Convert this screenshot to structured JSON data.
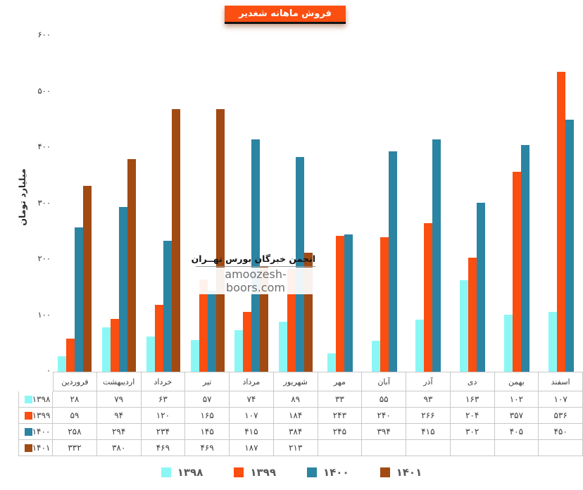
{
  "title": "فروش ماهانه شغدیر",
  "y_axis": {
    "title": "میلیارد تومان",
    "tick_values": [
      600,
      500,
      400,
      300,
      200,
      100,
      0
    ]
  },
  "watermark": {
    "line1": "انجمن خبرگان بورس تهــران",
    "line2": "amoozesh-boors.com"
  },
  "colors": {
    "accent_orange": "#FB4E11",
    "border_gray": "#c9c9c9",
    "legend_text": "#595959"
  },
  "chart_data": {
    "type": "bar",
    "title": "فروش ماهانه شغدیر",
    "xlabel": "",
    "ylabel": "میلیارد تومان",
    "ylim": [
      0,
      600
    ],
    "grid": false,
    "legend_position": "bottom",
    "categories": [
      "فروردین",
      "اردیبهشت",
      "خرداد",
      "تیر",
      "مرداد",
      "شهریور",
      "مهر",
      "آبان",
      "آذر",
      "دی",
      "بهمن",
      "اسفند"
    ],
    "series": [
      {
        "name": "۱۳۹۸",
        "color": "#8BF7F5",
        "values": [
          28,
          79,
          63,
          57,
          74,
          89,
          33,
          55,
          93,
          163,
          102,
          107
        ]
      },
      {
        "name": "۱۳۹۹",
        "color": "#FB4E11",
        "values": [
          59,
          94,
          120,
          165,
          107,
          184,
          243,
          240,
          266,
          204,
          357,
          536
        ]
      },
      {
        "name": "۱۴۰۰",
        "color": "#2C84A3",
        "values": [
          258,
          294,
          234,
          145,
          415,
          384,
          245,
          394,
          415,
          302,
          405,
          450
        ]
      },
      {
        "name": "۱۴۰۱",
        "color": "#A14A13",
        "values": [
          332,
          380,
          469,
          469,
          187,
          213,
          null,
          null,
          null,
          null,
          null,
          null
        ]
      }
    ]
  }
}
